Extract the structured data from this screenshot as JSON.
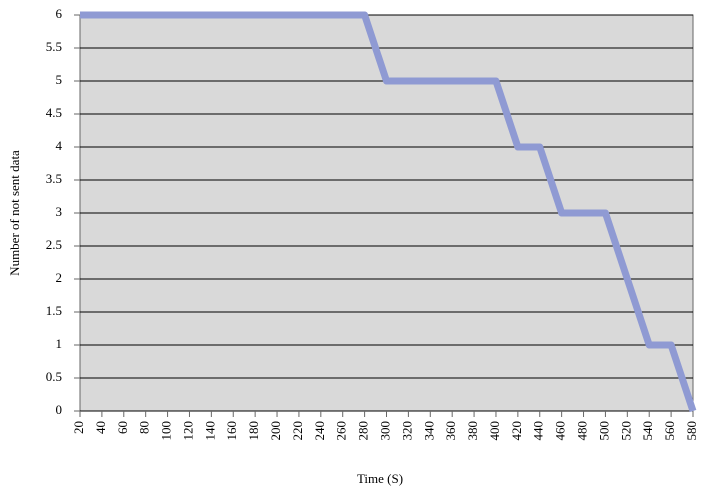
{
  "chart_data": {
    "type": "line",
    "xlabel": "Time (S)",
    "ylabel": "Number of not sent data",
    "x": [
      20,
      40,
      60,
      80,
      100,
      120,
      140,
      160,
      180,
      200,
      220,
      240,
      260,
      280,
      300,
      320,
      340,
      360,
      380,
      400,
      420,
      440,
      460,
      480,
      500,
      520,
      540,
      560,
      580
    ],
    "values": [
      6,
      6,
      6,
      6,
      6,
      6,
      6,
      6,
      6,
      6,
      6,
      6,
      6,
      6,
      5,
      5,
      5,
      5,
      5,
      5,
      4,
      4,
      3,
      3,
      3,
      2,
      1,
      1,
      0
    ],
    "color": "#8f9ad3",
    "xlim": [
      20,
      580
    ],
    "xticks": [
      20,
      40,
      60,
      80,
      100,
      120,
      140,
      160,
      180,
      200,
      220,
      240,
      260,
      280,
      300,
      320,
      340,
      360,
      380,
      400,
      420,
      440,
      460,
      480,
      500,
      520,
      540,
      560,
      580
    ],
    "ylim": [
      0,
      6
    ],
    "yticks": [
      0,
      0.5,
      1,
      1.5,
      2,
      2.5,
      3,
      3.5,
      4,
      4.5,
      5,
      5.5,
      6
    ],
    "grid": true
  }
}
